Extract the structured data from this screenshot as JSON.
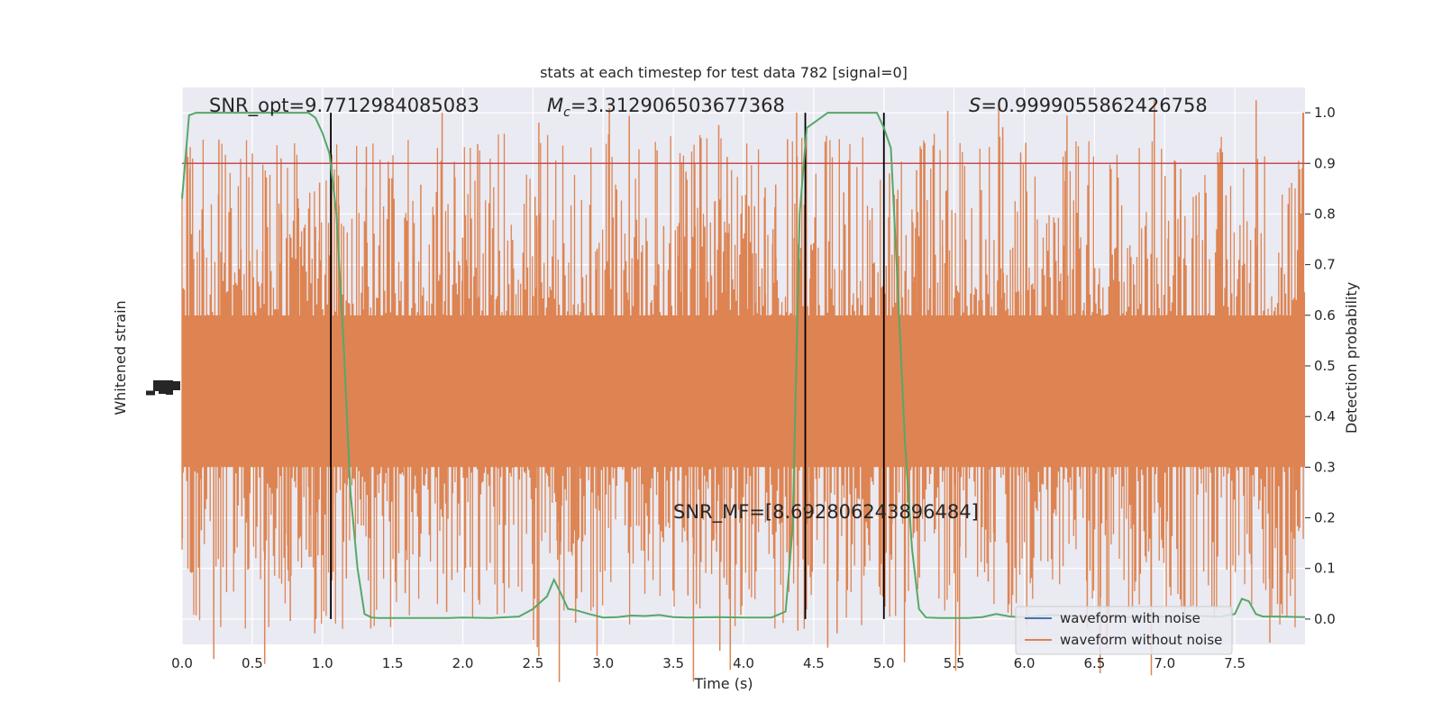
{
  "chart_data": {
    "type": "line",
    "title": "stats at each timestep for test data 782 [signal=0]",
    "xlabel": "Time (s)",
    "ylabel_left": "Whitened strain",
    "ylabel_right": "Detection probability",
    "xlim": [
      0.0,
      8.0
    ],
    "xticks": [
      "0.0",
      "0.5",
      "1.0",
      "1.5",
      "2.0",
      "2.5",
      "3.0",
      "3.5",
      "4.0",
      "4.5",
      "5.0",
      "5.5",
      "6.0",
      "6.5",
      "7.0",
      "7.5"
    ],
    "ylim_right": [
      -0.05,
      1.05
    ],
    "yticks_right": [
      "0.0",
      "0.1",
      "0.2",
      "0.3",
      "0.4",
      "0.5",
      "0.6",
      "0.7",
      "0.8",
      "0.9",
      "1.0"
    ],
    "threshold": 0.9,
    "vlines": [
      1.06,
      4.44,
      5.0
    ],
    "annotations": {
      "snr_opt": "SNR_opt=9.7712984085083",
      "mc_prefix": "M",
      "mc_sub": "c",
      "mc_value": "=3.312906503677368",
      "s_prefix": "S",
      "s_value": "=0.9999055862426758",
      "snr_mf": "SNR_MF=[8.692806243896484]"
    },
    "series": [
      {
        "name": "waveform with noise",
        "color": "#4c72b0"
      },
      {
        "name": "waveform without noise",
        "color": "#dd8452"
      }
    ],
    "detection_probability": {
      "color": "#55a868",
      "x": [
        0.0,
        0.05,
        0.1,
        0.2,
        0.3,
        0.5,
        0.7,
        0.9,
        0.95,
        1.0,
        1.05,
        1.1,
        1.15,
        1.2,
        1.25,
        1.3,
        1.35,
        1.4,
        1.5,
        1.7,
        1.9,
        2.0,
        2.2,
        2.4,
        2.5,
        2.6,
        2.65,
        2.7,
        2.75,
        2.8,
        2.9,
        3.0,
        3.1,
        3.2,
        3.3,
        3.4,
        3.5,
        3.6,
        3.8,
        4.0,
        4.2,
        4.3,
        4.35,
        4.4,
        4.45,
        4.5,
        4.6,
        4.7,
        4.8,
        4.95,
        5.0,
        5.05,
        5.1,
        5.15,
        5.2,
        5.25,
        5.3,
        5.4,
        5.6,
        5.7,
        5.8,
        5.9,
        6.0,
        6.2,
        6.4,
        6.6,
        6.8,
        7.0,
        7.2,
        7.4,
        7.5,
        7.55,
        7.6,
        7.65,
        7.7,
        7.8,
        8.0
      ],
      "y": [
        0.83,
        0.995,
        1.0,
        1.0,
        1.0,
        1.0,
        1.0,
        1.0,
        0.99,
        0.96,
        0.92,
        0.8,
        0.55,
        0.25,
        0.1,
        0.01,
        0.003,
        0.002,
        0.002,
        0.002,
        0.002,
        0.003,
        0.002,
        0.005,
        0.02,
        0.045,
        0.078,
        0.05,
        0.02,
        0.018,
        0.01,
        0.003,
        0.004,
        0.007,
        0.006,
        0.008,
        0.004,
        0.003,
        0.004,
        0.003,
        0.003,
        0.015,
        0.18,
        0.8,
        0.97,
        0.98,
        1.0,
        1.0,
        1.0,
        1.0,
        0.97,
        0.93,
        0.65,
        0.35,
        0.14,
        0.02,
        0.003,
        0.002,
        0.002,
        0.004,
        0.01,
        0.005,
        0.004,
        0.008,
        0.005,
        0.003,
        0.004,
        0.005,
        0.006,
        0.005,
        0.01,
        0.04,
        0.035,
        0.01,
        0.005,
        0.005,
        0.004
      ]
    },
    "legend": {
      "placement": "lower right"
    },
    "grid": true
  }
}
